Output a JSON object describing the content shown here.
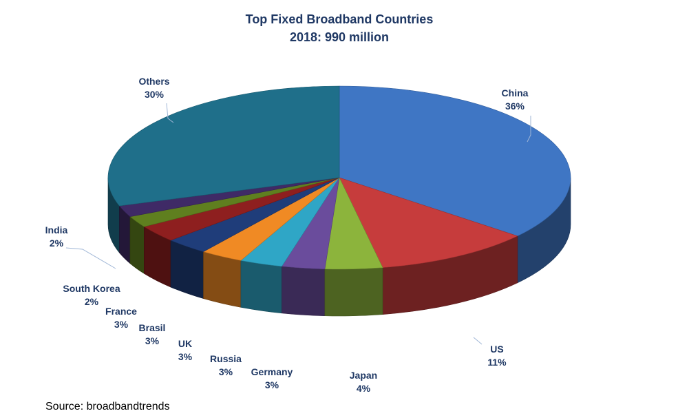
{
  "chart_data": {
    "type": "pie",
    "title": "Top Fixed Broadband Countries",
    "subtitle": "2018: 990 million",
    "slices": [
      {
        "name": "China",
        "value": 36,
        "label": "36%",
        "color": "#3f76c4"
      },
      {
        "name": "US",
        "value": 11,
        "label": "11%",
        "color": "#c63c3c"
      },
      {
        "name": "Japan",
        "value": 4,
        "label": "4%",
        "color": "#8cb43c"
      },
      {
        "name": "Germany",
        "value": 3,
        "label": "3%",
        "color": "#6a4c9c"
      },
      {
        "name": "Russia",
        "value": 3,
        "label": "3%",
        "color": "#2fa6c6"
      },
      {
        "name": "UK",
        "value": 3,
        "label": "3%",
        "color": "#f08a24"
      },
      {
        "name": "Brasil",
        "value": 3,
        "label": "3%",
        "color": "#1f3d7a"
      },
      {
        "name": "France",
        "value": 3,
        "label": "3%",
        "color": "#8e1f1f"
      },
      {
        "name": "South Korea",
        "value": 2,
        "label": "2%",
        "color": "#5f7f1f"
      },
      {
        "name": "India",
        "value": 2,
        "label": "2%",
        "color": "#3f2a66"
      },
      {
        "name": "Others",
        "value": 30,
        "label": "30%",
        "color": "#1f6f8a"
      }
    ]
  },
  "source": "Source: broadbandtrends"
}
